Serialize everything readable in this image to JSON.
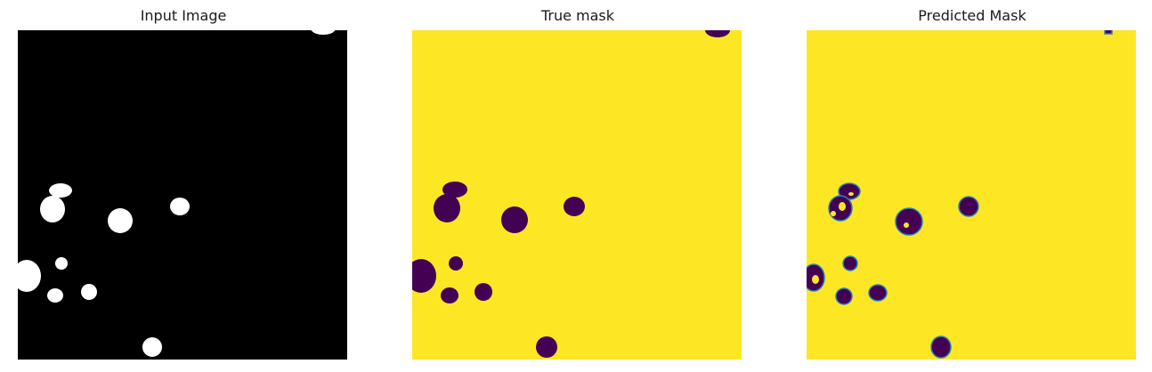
{
  "panels": [
    {
      "title": "Input Image",
      "kind": "input",
      "colors": {
        "background": "#000000",
        "blob": "#ffffff"
      }
    },
    {
      "title": "True mask",
      "kind": "true-mask",
      "colors": {
        "background": "#fde725",
        "blob": "#440154"
      }
    },
    {
      "title": "Predicted Mask",
      "kind": "predicted-mask",
      "colors": {
        "background": "#fde725",
        "blob": "#440154",
        "edge": "#2c7fb8"
      }
    }
  ]
}
